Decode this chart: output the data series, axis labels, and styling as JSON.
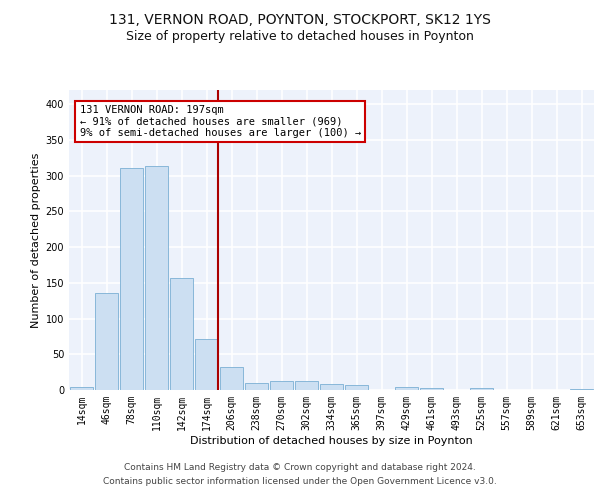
{
  "title1": "131, VERNON ROAD, POYNTON, STOCKPORT, SK12 1YS",
  "title2": "Size of property relative to detached houses in Poynton",
  "xlabel": "Distribution of detached houses by size in Poynton",
  "ylabel": "Number of detached properties",
  "categories": [
    "14sqm",
    "46sqm",
    "78sqm",
    "110sqm",
    "142sqm",
    "174sqm",
    "206sqm",
    "238sqm",
    "270sqm",
    "302sqm",
    "334sqm",
    "365sqm",
    "397sqm",
    "429sqm",
    "461sqm",
    "493sqm",
    "525sqm",
    "557sqm",
    "589sqm",
    "621sqm",
    "653sqm"
  ],
  "values": [
    4,
    136,
    311,
    314,
    157,
    71,
    32,
    10,
    13,
    13,
    9,
    7,
    0,
    4,
    3,
    0,
    3,
    0,
    0,
    0,
    2
  ],
  "bar_color": "#ccdff2",
  "bar_edge_color": "#7aafd4",
  "property_line_bin": 5.45,
  "annotation_text": "131 VERNON ROAD: 197sqm\n← 91% of detached houses are smaller (969)\n9% of semi-detached houses are larger (100) →",
  "annotation_box_color": "#ffffff",
  "annotation_box_edge": "#cc0000",
  "vline_color": "#aa0000",
  "footnote1": "Contains HM Land Registry data © Crown copyright and database right 2024.",
  "footnote2": "Contains public sector information licensed under the Open Government Licence v3.0.",
  "ylim": [
    0,
    420
  ],
  "yticks": [
    0,
    50,
    100,
    150,
    200,
    250,
    300,
    350,
    400
  ],
  "background_color": "#edf2fb",
  "grid_color": "#ffffff",
  "title1_fontsize": 10,
  "title2_fontsize": 9,
  "axis_label_fontsize": 8,
  "tick_fontsize": 7,
  "annot_fontsize": 7.5,
  "footnote_fontsize": 6.5
}
